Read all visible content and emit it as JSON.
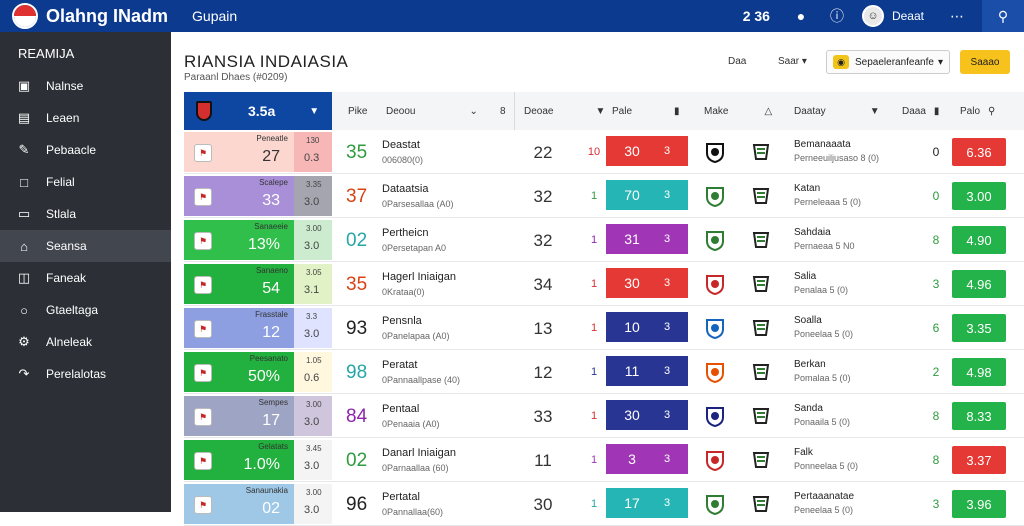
{
  "app": {
    "title": "Olahng INadm",
    "subtitle": "Gupain",
    "count": "2 36",
    "user_name": "Deaat"
  },
  "sidebar": {
    "title": "REAMIJA",
    "items": [
      {
        "label": "Nalnse",
        "icon": "monitor-icon"
      },
      {
        "label": "Leaen",
        "icon": "card-icon"
      },
      {
        "label": "Pebaacle",
        "icon": "pencil-icon"
      },
      {
        "label": "Felial",
        "icon": "file-icon"
      },
      {
        "label": "Stlala",
        "icon": "ticket-icon"
      },
      {
        "label": "Seansa",
        "icon": "home-icon"
      },
      {
        "label": "Faneak",
        "icon": "doc-icon"
      },
      {
        "label": "Gtaeltaga",
        "icon": "person-icon"
      },
      {
        "label": "Alneleak",
        "icon": "settings-icon"
      },
      {
        "label": "Perelalotas",
        "icon": "export-icon"
      }
    ],
    "active_index": 5
  },
  "page": {
    "title": "RIANSIA INDAIASIA",
    "subtitle": "Paraanl Dhaes (#0209)",
    "ctrl1": "Daa",
    "ctrl2": "Saar",
    "select_value": "Sepaeleranfeanfe",
    "button": "Saaao"
  },
  "header": {
    "team_value": "3.5a",
    "col1": "Pike",
    "col2": "Deoou",
    "col2_extra": "8",
    "col3": "Deoae",
    "col4": "Pale",
    "col5": "Make",
    "col6": "Daatay",
    "col7": "Daaa",
    "col8": "Palo"
  },
  "rows": [
    {
      "label": "Peneatle",
      "pct": "27",
      "side_a": "130",
      "side_b": "0.3",
      "big": "35",
      "big_color": "#2e9b3f",
      "title": "Deastat",
      "sub": "006080(0)",
      "mid": "22",
      "small": "10",
      "small_color": "#d32f2f",
      "s1": "30",
      "s2": "3",
      "score_color": "#e53935",
      "team": "Bemanaaata",
      "team_sub": "Perneeuiljusaso 8 (0)",
      "right": "0",
      "right_color": "#222",
      "right_val": "6.36",
      "right_bg": "#e53935",
      "pct_bg": "#fbd7cf",
      "side_bg": "#f8b7b7",
      "pct_dark": true
    },
    {
      "label": "Scalepe",
      "pct": "33",
      "side_a": "3.35",
      "side_b": "3.0",
      "big": "37",
      "big_color": "#d84315",
      "title": "Dataatsia",
      "sub": "0Parsesallaa (A0)",
      "mid": "32",
      "small": "1",
      "small_color": "#2e9b3f",
      "s1": "70",
      "s2": "3",
      "score_color": "#26b5b5",
      "team": "Katan",
      "team_sub": "Perneleaaa 5 (0)",
      "right": "0",
      "right_color": "#2e9b3f",
      "right_val": "3.00",
      "right_bg": "#24b24a",
      "pct_bg": "#a98fd8",
      "side_bg": "#a5a5b0",
      "pct_dark": false
    },
    {
      "label": "Sanaeeie",
      "pct": "13%",
      "side_a": "3.00",
      "side_b": "3.0",
      "big": "02",
      "big_color": "#26a6a6",
      "title": "Pertheicn",
      "sub": "0Persetapan A0",
      "mid": "32",
      "small": "1",
      "small_color": "#8e24aa",
      "s1": "31",
      "s2": "3",
      "score_color": "#a035b5",
      "team": "Sahdaia",
      "team_sub": "Pernaeaa 5 N0",
      "right": "8",
      "right_color": "#2e9b3f",
      "right_val": "4.90",
      "right_bg": "#24b24a",
      "pct_bg": "#2fbf4a",
      "side_bg": "#cdeccf",
      "pct_dark": false
    },
    {
      "label": "Sanaeno",
      "pct": "54",
      "side_a": "3.05",
      "side_b": "3.1",
      "big": "35",
      "big_color": "#d84315",
      "title": "Hagerl Iniaigan",
      "sub": "0Krataa(0)",
      "mid": "34",
      "small": "1",
      "small_color": "#d32f2f",
      "s1": "30",
      "s2": "3",
      "score_color": "#e53935",
      "team": "Salia",
      "team_sub": "Penalaa 5 (0)",
      "right": "3",
      "right_color": "#2e9b3f",
      "right_val": "4.96",
      "right_bg": "#24b24a",
      "pct_bg": "#22b03e",
      "side_bg": "#e1f3c6",
      "pct_dark": false
    },
    {
      "label": "Frasstale",
      "pct": "12",
      "side_a": "3.3",
      "side_b": "3.0",
      "big": "93",
      "big_color": "#222",
      "title": "Pensnla",
      "sub": "0Panelapaa (A0)",
      "mid": "13",
      "small": "1",
      "small_color": "#d32f2f",
      "s1": "10",
      "s2": "3",
      "score_color": "#283593",
      "team": "Soalla",
      "team_sub": "Poneelaa 5 (0)",
      "right": "6",
      "right_color": "#2e9b3f",
      "right_val": "3.35",
      "right_bg": "#24b24a",
      "pct_bg": "#8d9fe0",
      "side_bg": "#dfe3ff",
      "pct_dark": false
    },
    {
      "label": "Peesanato",
      "pct": "50%",
      "side_a": "1.05",
      "side_b": "0.6",
      "big": "98",
      "big_color": "#26a6a6",
      "title": "Peratat",
      "sub": "0Pannaallpase (40)",
      "mid": "12",
      "small": "1",
      "small_color": "#283593",
      "s1": "11",
      "s2": "3",
      "score_color": "#283593",
      "team": "Berkan",
      "team_sub": "Pomalaa 5 (0)",
      "right": "2",
      "right_color": "#2e9b3f",
      "right_val": "4.98",
      "right_bg": "#24b24a",
      "pct_bg": "#22b03e",
      "side_bg": "#fff8df",
      "pct_dark": false
    },
    {
      "label": "Sempes",
      "pct": "17",
      "side_a": "3.00",
      "side_b": "3.0",
      "big": "84",
      "big_color": "#8e24aa",
      "title": "Pentaal",
      "sub": "0Penaaia (A0)",
      "mid": "33",
      "small": "1",
      "small_color": "#d32f2f",
      "s1": "30",
      "s2": "3",
      "score_color": "#283593",
      "team": "Sanda",
      "team_sub": "Ponaaila 5 (0)",
      "right": "8",
      "right_color": "#2e9b3f",
      "right_val": "8.33",
      "right_bg": "#24b24a",
      "pct_bg": "#9ea4c4",
      "side_bg": "#cfc6de",
      "pct_dark": false
    },
    {
      "label": "Gelatats",
      "pct": "1.0%",
      "side_a": "3.45",
      "side_b": "3.0",
      "big": "02",
      "big_color": "#2e9b3f",
      "title": "Danarl Iniaigan",
      "sub": "0Parnaallaa (60)",
      "mid": "11",
      "small": "1",
      "small_color": "#a035b5",
      "s1": "3",
      "s2": "3",
      "score_color": "#a035b5",
      "team": "Falk",
      "team_sub": "Ponneelaa 5 (0)",
      "right": "8",
      "right_color": "#2e9b3f",
      "right_val": "3.37",
      "right_bg": "#e53935",
      "pct_bg": "#22b03e",
      "side_bg": "#f4f4f4",
      "pct_dark": false
    },
    {
      "label": "Sanaunakia",
      "pct": "02",
      "side_a": "3.00",
      "side_b": "3.0",
      "big": "96",
      "big_color": "#222",
      "title": "Pertatal",
      "sub": "0Pannallaa(60)",
      "mid": "30",
      "small": "1",
      "small_color": "#26a6a6",
      "s1": "17",
      "s2": "3",
      "score_color": "#26b5b5",
      "team": "Pertaaanatae",
      "team_sub": "Peneelaa 5 (0)",
      "right": "3",
      "right_color": "#2e9b3f",
      "right_val": "3.96",
      "right_bg": "#24b24a",
      "pct_bg": "#9ec8e6",
      "side_bg": "#f4f4f4",
      "pct_dark": false
    }
  ]
}
